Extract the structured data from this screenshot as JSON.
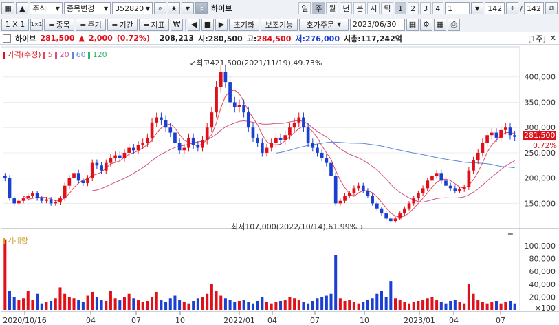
{
  "toolbar": {
    "market_type": "주식",
    "stock_change_label": "종목변경",
    "stock_code": "352820",
    "stock_name": "하이브",
    "period_tabs": [
      "일",
      "주",
      "월",
      "년",
      "분",
      "시",
      "틱"
    ],
    "number_tabs": [
      "1",
      "2",
      "3",
      "4",
      "1"
    ],
    "count_a": "142",
    "count_sep": "/",
    "count_b": "142"
  },
  "toolbar2": {
    "scale_label": "1 X 1",
    "item_label": "종목",
    "cycle_label": "주기",
    "period_label": "기간",
    "indicator_label": "지표",
    "reset_label": "초기화",
    "aux_label": "보조기능",
    "order_label": "호가주문",
    "date_value": "2023/06/30"
  },
  "info_bar": {
    "name": "하이브",
    "price": "281,500",
    "change_arrow": "▲",
    "change": "2,000",
    "change_pct": "(0.72%)",
    "volume": "208,213",
    "open_label": "시:",
    "open": "280,500",
    "high_label": "고:",
    "high": "284,500",
    "low_label": "저:",
    "low": "276,000",
    "mcap_label": "시총:",
    "mcap": "117,242억",
    "period_badge": "[1주]"
  },
  "legend": {
    "title": "가격(수정)",
    "ma5": "5",
    "ma20": "20",
    "ma60": "60",
    "ma120": "120"
  },
  "annotations": {
    "high": "최고421,500(2021/11/19),49.73%",
    "low": "최저107,000(2022/10/14),61.99%"
  },
  "current": {
    "price": "281,500",
    "pct": "0.72%"
  },
  "volume_legend": "거래량",
  "colors": {
    "up": "#e0101a",
    "down": "#1a3fd1",
    "ma5": "#e8465a",
    "ma20": "#d0508a",
    "ma60": "#5b8ad6",
    "ma120": "#33b06a"
  },
  "chart_data": {
    "type": "candlestick",
    "price_axis": {
      "ticks": [
        150000,
        200000,
        250000,
        300000,
        350000,
        400000
      ],
      "tick_labels": [
        "150,000",
        "200,000",
        "250,000",
        "300,000",
        "350,000",
        "400,000"
      ],
      "range": [
        107000,
        450000
      ]
    },
    "volume_axis": {
      "ticks": [
        20000,
        40000,
        60000,
        80000,
        100000
      ],
      "tick_labels": [
        "20,000",
        "40,000",
        "60,000",
        "80,000",
        "100,000"
      ],
      "unit_label": "×100"
    },
    "x_labels": [
      "2020/10/16",
      "04",
      "07",
      "10",
      "2022/01",
      "04",
      "07",
      "10",
      "2023/01",
      "04",
      "07"
    ],
    "close_series": [
      200000,
      160000,
      150000,
      155000,
      160000,
      165000,
      170000,
      160000,
      155000,
      158000,
      150000,
      152000,
      160000,
      185000,
      200000,
      210000,
      195000,
      190000,
      200000,
      230000,
      225000,
      215000,
      230000,
      240000,
      245000,
      240000,
      250000,
      260000,
      255000,
      265000,
      270000,
      280000,
      310000,
      320000,
      315000,
      300000,
      290000,
      270000,
      255000,
      260000,
      280000,
      265000,
      260000,
      275000,
      300000,
      330000,
      380000,
      410000,
      390000,
      350000,
      340000,
      345000,
      330000,
      300000,
      280000,
      270000,
      250000,
      260000,
      270000,
      280000,
      275000,
      285000,
      300000,
      310000,
      320000,
      300000,
      270000,
      260000,
      250000,
      240000,
      230000,
      205000,
      150000,
      155000,
      165000,
      170000,
      180000,
      185000,
      175000,
      165000,
      150000,
      140000,
      130000,
      120000,
      115000,
      120000,
      130000,
      140000,
      150000,
      160000,
      170000,
      180000,
      195000,
      205000,
      210000,
      195000,
      185000,
      180000,
      175000,
      178000,
      182000,
      215000,
      235000,
      250000,
      270000,
      285000,
      290000,
      280000,
      295000,
      300000,
      285000,
      281500
    ],
    "volume_series": [
      110000,
      30000,
      20000,
      15000,
      18000,
      30000,
      15000,
      25000,
      10000,
      12000,
      14000,
      18000,
      35000,
      25000,
      20000,
      18000,
      15000,
      12000,
      22000,
      28000,
      20000,
      15000,
      14000,
      30000,
      18000,
      15000,
      20000,
      25000,
      18000,
      15000,
      12000,
      14000,
      20000,
      28000,
      15000,
      12000,
      18000,
      22000,
      15000,
      12000,
      10000,
      14000,
      18000,
      20000,
      25000,
      40000,
      30000,
      22000,
      18000,
      15000,
      12000,
      14000,
      16000,
      12000,
      10000,
      14000,
      20000,
      12000,
      10000,
      12000,
      14000,
      15000,
      20000,
      18000,
      15000,
      12000,
      10000,
      14000,
      18000,
      20000,
      22000,
      25000,
      85000,
      18000,
      14000,
      15000,
      12000,
      10000,
      12000,
      15000,
      18000,
      25000,
      30000,
      20000,
      45000,
      18000,
      15000,
      12000,
      10000,
      12000,
      14000,
      15000,
      18000,
      20000,
      15000,
      12000,
      10000,
      14000,
      16000,
      12000,
      10000,
      40000,
      25000,
      15000,
      12000,
      10000,
      12000,
      14000,
      10000,
      12000,
      14000,
      10000
    ]
  }
}
